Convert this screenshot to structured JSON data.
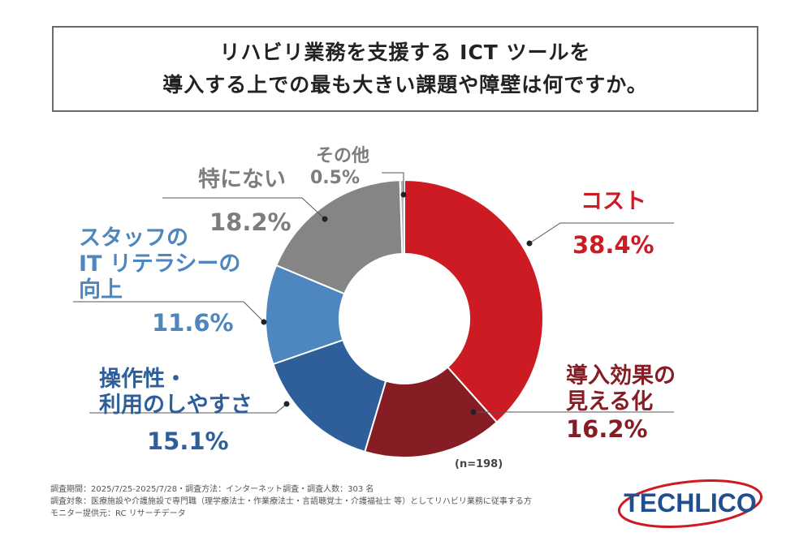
{
  "title": {
    "line1": "リハビリ業務を支援する ICT ツールを",
    "line2": "導入する上での最も大きい課題や障壁は何ですか。"
  },
  "chart_data": {
    "type": "pie",
    "donut": true,
    "slices": [
      {
        "id": "cost",
        "name_lines": [
          "コスト"
        ],
        "value": 38.4,
        "label": "38.4%",
        "color": "#cc1b22",
        "text_color": "#cc1b22"
      },
      {
        "id": "effect",
        "name_lines": [
          "導入効果の",
          "見える化"
        ],
        "value": 16.2,
        "label": "16.2%",
        "color": "#871d24",
        "text_color": "#871d24"
      },
      {
        "id": "usab",
        "name_lines": [
          "操作性・",
          "利用のしやすさ"
        ],
        "value": 15.1,
        "label": "15.1%",
        "color": "#2f5f9a",
        "text_color": "#2f5f9a"
      },
      {
        "id": "literacy",
        "name_lines": [
          "スタッフの",
          "IT リテラシーの",
          "向上"
        ],
        "value": 11.6,
        "label": "11.6%",
        "color": "#4e86bf",
        "text_color": "#4e86bf"
      },
      {
        "id": "none",
        "name_lines": [
          "特にない"
        ],
        "value": 18.2,
        "label": "18.2%",
        "color": "#858585",
        "text_color": "#7d7d7d"
      },
      {
        "id": "other",
        "name_lines": [
          "その他"
        ],
        "value": 0.5,
        "label": "0.5%",
        "color": "#b5b5b5",
        "text_color": "#7d7d7d"
      }
    ],
    "n_note": "(n=198)"
  },
  "footer": {
    "line1": "調査期間：2025/7/25-2025/7/28・調査方法：インターネット調査・調査人数：303 名",
    "line2": "調査対象：医療施設や介護施設で専門職（理学療法士・作業療法士・言語聴覚士・介護福祉士 等）としてリハビリ業務に従事する方",
    "line3": "モニター提供元：RC リサーチデータ"
  },
  "logo": {
    "text": "TECHLICO",
    "color": "#1f4f8f",
    "ring_color": "#cc1b22"
  }
}
